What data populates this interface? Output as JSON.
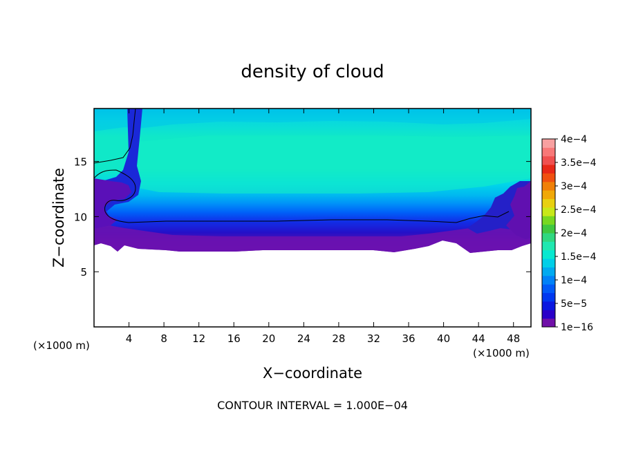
{
  "chart_data": {
    "type": "heatmap",
    "title": "density of cloud",
    "xlabel": "X−coordinate",
    "ylabel": "Z−coordinate",
    "x_unit": "(×1000 m)",
    "x_unit_right": "(×1000 m)",
    "xlim": [
      0,
      50
    ],
    "ylim": [
      0,
      19.8
    ],
    "x_ticks": [
      4,
      8,
      12,
      16,
      20,
      24,
      28,
      32,
      36,
      40,
      44,
      48
    ],
    "x_tick_labels": [
      "4",
      "8",
      "12",
      "16",
      "20",
      "24",
      "28",
      "32",
      "36",
      "40",
      "44",
      "48"
    ],
    "y_ticks": [
      5,
      10,
      15
    ],
    "y_tick_labels": [
      "5",
      "10",
      "15"
    ],
    "colorbar": {
      "tick_labels": [
        "1e−16",
        "5e−5",
        "1e−4",
        "1.5e−4",
        "2e−4",
        "2.5e−4",
        "3e−4",
        "3.5e−4",
        "4e−4"
      ],
      "tick_values": [
        1e-16,
        5e-05,
        0.0001,
        0.00015,
        0.0002,
        0.00025,
        0.0003,
        0.00035,
        0.0004
      ],
      "colors": [
        "#7010a8",
        "#2a00c8",
        "#0a18e0",
        "#0038f0",
        "#005af8",
        "#0082f8",
        "#00aaf0",
        "#00cfe8",
        "#08e8d0",
        "#20e8b0",
        "#30d880",
        "#40c840",
        "#78d820",
        "#c8e818",
        "#e8d010",
        "#f0a808",
        "#f08008",
        "#f05010",
        "#e82818",
        "#f05050",
        "#f87878",
        "#f8a0a0"
      ]
    },
    "field_description_bands": [
      {
        "z_range": [
          7.5,
          8.8
        ],
        "value": 1e-16
      },
      {
        "z_range": [
          8.8,
          10.5
        ],
        "value": 5e-05
      },
      {
        "z_range": [
          10.5,
          13.5
        ],
        "value": 0.0001
      },
      {
        "z_range": [
          13.5,
          17.5
        ],
        "value": 0.00015
      },
      {
        "z_range": [
          17.5,
          19.8
        ],
        "value": 0.00012
      }
    ],
    "footer": "CONTOUR INTERVAL = 1.000E−04"
  }
}
